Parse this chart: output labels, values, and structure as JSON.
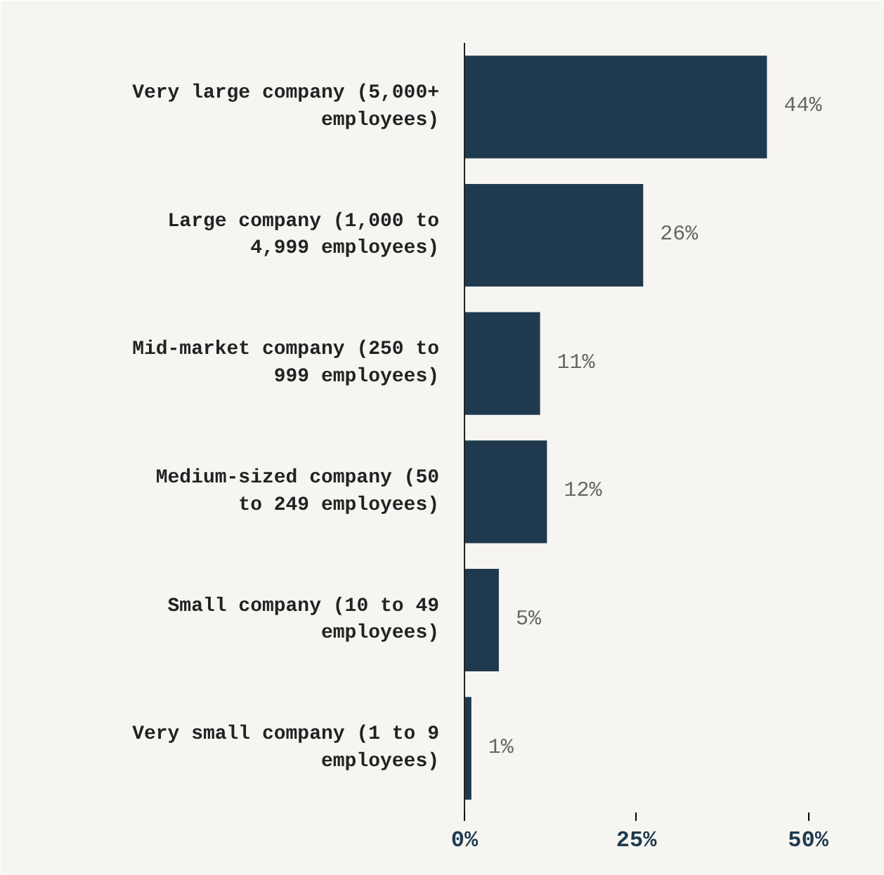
{
  "chart_data": {
    "type": "bar",
    "orientation": "horizontal",
    "categories": [
      "Very large company (5,000+ employees)",
      "Large company (1,000 to 4,999 employees)",
      "Mid-market company (250 to 999 employees)",
      "Medium-sized company (50 to 249 employees)",
      "Small company (10 to 49 employees)",
      "Very small company (1 to 9 employees)"
    ],
    "values": [
      44,
      26,
      11,
      12,
      5,
      1
    ],
    "value_labels": [
      "44%",
      "26%",
      "11%",
      "12%",
      "5%",
      "1%"
    ],
    "color": "#1f3a4f",
    "xlim": [
      0,
      55
    ],
    "xticks": [
      {
        "value": 0,
        "label": "0%"
      },
      {
        "value": 25,
        "label": "25%"
      },
      {
        "value": 50,
        "label": "50%"
      }
    ],
    "grid": false
  }
}
